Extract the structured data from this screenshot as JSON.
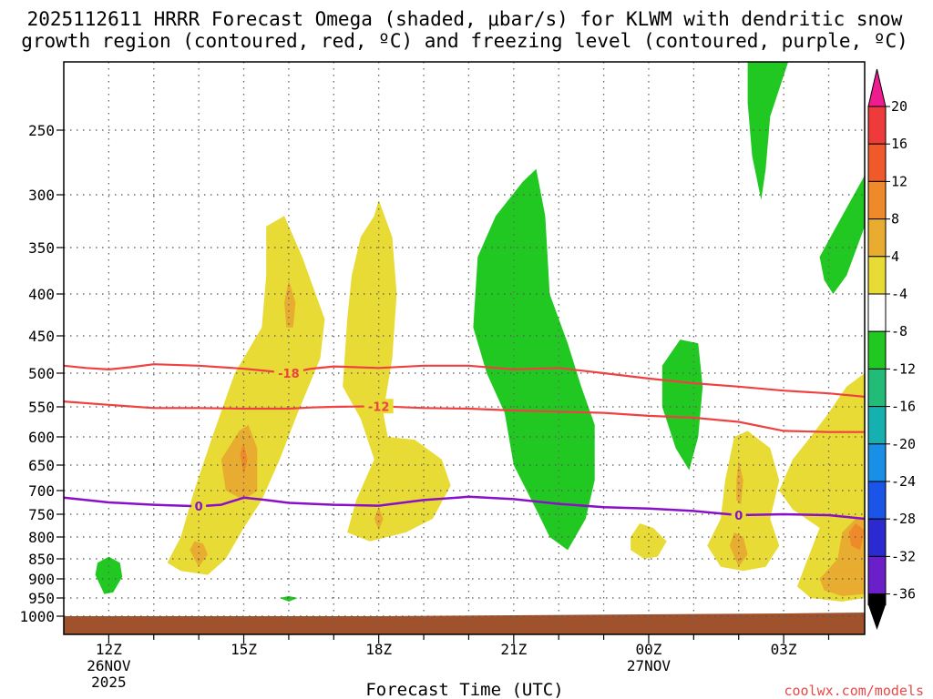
{
  "chart_data": {
    "type": "contour",
    "title_line1": "2025112611 HRRR Forecast Omega (shaded, μbar/s) for KLWM with dendritic snow",
    "title_line2": "growth region (contoured, red, ºC) and freezing level (contoured, purple, ºC)",
    "xlabel": "Forecast Time (UTC)",
    "credit": "coolwx.com/models",
    "x_range_hours": [
      11.0,
      28.8
    ],
    "y_axis": {
      "label_values": [
        250,
        300,
        350,
        400,
        450,
        500,
        550,
        600,
        650,
        700,
        750,
        800,
        850,
        900,
        950,
        1000
      ],
      "labels": [
        "250",
        "300",
        "350",
        "400",
        "450",
        "500",
        "550",
        "600",
        "650",
        "700",
        "750",
        "800",
        "850",
        "900",
        "950",
        "1000"
      ],
      "range_hpa": [
        200,
        1020
      ],
      "scale": "log-pressure"
    },
    "x_ticks": [
      {
        "hour": 12,
        "label": "12Z",
        "date": "26NOV",
        "year": "2025"
      },
      {
        "hour": 15,
        "label": "15Z",
        "date": "",
        "year": ""
      },
      {
        "hour": 18,
        "label": "18Z",
        "date": "",
        "year": ""
      },
      {
        "hour": 21,
        "label": "21Z",
        "date": "",
        "year": ""
      },
      {
        "hour": 24,
        "label": "00Z",
        "date": "27NOV",
        "year": ""
      },
      {
        "hour": 27,
        "label": "03Z",
        "date": "",
        "year": ""
      }
    ],
    "colorbar": {
      "labels": [
        "20",
        "16",
        "12",
        "8",
        "4",
        "-4",
        "-8",
        "-12",
        "-16",
        "-20",
        "-24",
        "-28",
        "-32",
        "-36"
      ],
      "colors": [
        "#ee1c8e",
        "#ee3a3a",
        "#f05a2a",
        "#ef8a2a",
        "#e8ad30",
        "#e8db35",
        "#ffffff",
        "#21c821",
        "#22bb77",
        "#17b0b0",
        "#1a8fe6",
        "#1a55e8",
        "#2a2ad0",
        "#6a1fc8",
        "#9a1cc8",
        "#a9a9a9",
        "#000000"
      ]
    },
    "contours": {
      "dgz_top": {
        "label": "-18",
        "color": "#ef4141",
        "points": [
          [
            11.0,
            490
          ],
          [
            11.5,
            493
          ],
          [
            12.0,
            495
          ],
          [
            12.5,
            492
          ],
          [
            13.0,
            488
          ],
          [
            14.0,
            490
          ],
          [
            15.0,
            494
          ],
          [
            15.5,
            497
          ],
          [
            16.0,
            500
          ],
          [
            16.5,
            494
          ],
          [
            17.0,
            491
          ],
          [
            18.0,
            493
          ],
          [
            19.0,
            490
          ],
          [
            20.0,
            490
          ],
          [
            21.0,
            495
          ],
          [
            22.0,
            493
          ],
          [
            23.0,
            500
          ],
          [
            24.0,
            508
          ],
          [
            25.0,
            515
          ],
          [
            26.0,
            520
          ],
          [
            27.0,
            526
          ],
          [
            28.0,
            530
          ],
          [
            28.8,
            535
          ]
        ]
      },
      "dgz_bottom": {
        "label": "-12",
        "color": "#ef4141",
        "points": [
          [
            11.0,
            542
          ],
          [
            12.0,
            547
          ],
          [
            13.0,
            552
          ],
          [
            14.0,
            552
          ],
          [
            15.0,
            553
          ],
          [
            16.0,
            553
          ],
          [
            16.5,
            551
          ],
          [
            17.0,
            550
          ],
          [
            18.0,
            549
          ],
          [
            19.0,
            552
          ],
          [
            20.0,
            553
          ],
          [
            21.0,
            556
          ],
          [
            22.0,
            558
          ],
          [
            23.0,
            560
          ],
          [
            24.0,
            565
          ],
          [
            25.0,
            568
          ],
          [
            26.0,
            575
          ],
          [
            27.0,
            590
          ],
          [
            28.0,
            592
          ],
          [
            28.8,
            592
          ]
        ]
      },
      "freezing_level": {
        "label": "0",
        "color": "#8a10c8",
        "points": [
          [
            11.0,
            715
          ],
          [
            12.0,
            725
          ],
          [
            13.0,
            730
          ],
          [
            14.0,
            733
          ],
          [
            14.5,
            730
          ],
          [
            15.0,
            715
          ],
          [
            15.5,
            720
          ],
          [
            16.0,
            726
          ],
          [
            17.0,
            730
          ],
          [
            18.0,
            732
          ],
          [
            19.0,
            720
          ],
          [
            20.0,
            713
          ],
          [
            21.0,
            718
          ],
          [
            22.0,
            728
          ],
          [
            23.0,
            735
          ],
          [
            24.0,
            738
          ],
          [
            25.0,
            743
          ],
          [
            26.0,
            752
          ],
          [
            27.0,
            750
          ],
          [
            28.0,
            752
          ],
          [
            28.8,
            760
          ]
        ]
      }
    },
    "contour_labels": [
      {
        "text": "-18",
        "hour": 16.0,
        "hpa": 500,
        "color": "#ef4141"
      },
      {
        "text": "-12",
        "hour": 18.0,
        "hpa": 549,
        "color": "#ef4141"
      },
      {
        "text": "0",
        "hour": 14.0,
        "hpa": 733,
        "color": "#8a10c8"
      },
      {
        "text": "0",
        "hour": 26.0,
        "hpa": 752,
        "color": "#8a10c8"
      }
    ],
    "regions": [
      {
        "name": "green-12z-low",
        "color": "#21c821",
        "points": [
          [
            11.7,
            890
          ],
          [
            11.75,
            860
          ],
          [
            12.0,
            845
          ],
          [
            12.25,
            860
          ],
          [
            12.3,
            895
          ],
          [
            12.1,
            935
          ],
          [
            11.9,
            940
          ]
        ]
      },
      {
        "name": "green-16z-dot",
        "color": "#21c821",
        "points": [
          [
            15.8,
            950
          ],
          [
            16.0,
            945
          ],
          [
            16.2,
            950
          ],
          [
            16.0,
            960
          ]
        ]
      },
      {
        "name": "green-20z-main",
        "color": "#21c821",
        "points": [
          [
            20.1,
            440
          ],
          [
            20.2,
            360
          ],
          [
            20.6,
            320
          ],
          [
            21.2,
            290
          ],
          [
            21.5,
            280
          ],
          [
            21.7,
            320
          ],
          [
            21.8,
            400
          ],
          [
            22.2,
            460
          ],
          [
            22.5,
            520
          ],
          [
            22.8,
            580
          ],
          [
            22.8,
            680
          ],
          [
            22.6,
            760
          ],
          [
            22.2,
            830
          ],
          [
            21.8,
            800
          ],
          [
            21.5,
            740
          ],
          [
            21.0,
            650
          ],
          [
            20.8,
            560
          ],
          [
            20.4,
            500
          ]
        ]
      },
      {
        "name": "green-25z-mid",
        "color": "#21c821",
        "points": [
          [
            24.3,
            490
          ],
          [
            24.7,
            455
          ],
          [
            25.1,
            460
          ],
          [
            25.2,
            520
          ],
          [
            25.1,
            600
          ],
          [
            24.9,
            660
          ],
          [
            24.6,
            620
          ],
          [
            24.3,
            550
          ]
        ]
      },
      {
        "name": "green-26z-top",
        "color": "#21c821",
        "points": [
          [
            26.2,
            200
          ],
          [
            27.1,
            200
          ],
          [
            26.7,
            240
          ],
          [
            26.6,
            280
          ],
          [
            26.5,
            305
          ],
          [
            26.3,
            270
          ],
          [
            26.2,
            230
          ]
        ]
      },
      {
        "name": "green-28z-upper",
        "color": "#21c821",
        "points": [
          [
            27.8,
            360
          ],
          [
            28.3,
            320
          ],
          [
            28.8,
            285
          ],
          [
            28.8,
            330
          ],
          [
            28.4,
            380
          ],
          [
            28.1,
            400
          ],
          [
            27.9,
            385
          ]
        ]
      },
      {
        "name": "yellow-14z-col",
        "color": "#e8db35",
        "points": [
          [
            13.3,
            860
          ],
          [
            13.6,
            800
          ],
          [
            13.9,
            700
          ],
          [
            14.3,
            600
          ],
          [
            14.8,
            500
          ],
          [
            15.4,
            440
          ],
          [
            15.5,
            380
          ],
          [
            15.5,
            330
          ],
          [
            15.9,
            320
          ],
          [
            16.3,
            360
          ],
          [
            16.8,
            430
          ],
          [
            16.7,
            480
          ],
          [
            16.2,
            560
          ],
          [
            15.8,
            640
          ],
          [
            15.4,
            720
          ],
          [
            15.0,
            780
          ],
          [
            14.6,
            850
          ],
          [
            14.2,
            890
          ],
          [
            13.6,
            880
          ]
        ]
      },
      {
        "name": "yellow-18z-col",
        "color": "#e8db35",
        "points": [
          [
            17.2,
            520
          ],
          [
            17.3,
            430
          ],
          [
            17.4,
            380
          ],
          [
            17.6,
            340
          ],
          [
            17.9,
            320
          ],
          [
            18.0,
            305
          ],
          [
            18.3,
            340
          ],
          [
            18.4,
            400
          ],
          [
            18.3,
            480
          ],
          [
            18.1,
            560
          ],
          [
            18.2,
            600
          ],
          [
            18.8,
            605
          ],
          [
            19.4,
            640
          ],
          [
            19.6,
            690
          ],
          [
            19.2,
            760
          ],
          [
            18.6,
            790
          ],
          [
            17.8,
            810
          ],
          [
            17.3,
            790
          ],
          [
            17.5,
            720
          ],
          [
            17.9,
            640
          ],
          [
            17.6,
            570
          ]
        ]
      },
      {
        "name": "yellow-24z-small",
        "color": "#e8db35",
        "points": [
          [
            23.6,
            800
          ],
          [
            23.8,
            770
          ],
          [
            24.1,
            780
          ],
          [
            24.4,
            810
          ],
          [
            24.2,
            845
          ],
          [
            23.9,
            850
          ],
          [
            23.6,
            830
          ]
        ]
      },
      {
        "name": "yellow-26z-col",
        "color": "#e8db35",
        "points": [
          [
            25.3,
            820
          ],
          [
            25.6,
            760
          ],
          [
            25.7,
            680
          ],
          [
            25.9,
            600
          ],
          [
            26.2,
            590
          ],
          [
            26.7,
            620
          ],
          [
            26.9,
            680
          ],
          [
            26.7,
            760
          ],
          [
            26.9,
            820
          ],
          [
            26.6,
            870
          ],
          [
            26.1,
            880
          ],
          [
            25.6,
            870
          ]
        ]
      },
      {
        "name": "yellow-28z-right",
        "color": "#e8db35",
        "points": [
          [
            26.9,
            700
          ],
          [
            27.2,
            640
          ],
          [
            27.6,
            600
          ],
          [
            28.0,
            560
          ],
          [
            28.4,
            520
          ],
          [
            28.8,
            500
          ],
          [
            28.8,
            950
          ],
          [
            28.3,
            960
          ],
          [
            27.6,
            950
          ],
          [
            27.3,
            920
          ],
          [
            27.5,
            860
          ],
          [
            27.8,
            780
          ],
          [
            27.2,
            740
          ]
        ]
      },
      {
        "name": "orange-16z-top",
        "color": "#e8ad30",
        "points": [
          [
            15.9,
            410
          ],
          [
            16.0,
            385
          ],
          [
            16.15,
            410
          ],
          [
            16.1,
            440
          ],
          [
            15.95,
            440
          ]
        ]
      },
      {
        "name": "orange-15z-mid",
        "color": "#e8ad30",
        "points": [
          [
            14.5,
            640
          ],
          [
            14.9,
            590
          ],
          [
            15.1,
            580
          ],
          [
            15.3,
            620
          ],
          [
            15.3,
            700
          ],
          [
            15.0,
            720
          ],
          [
            14.6,
            700
          ]
        ]
      },
      {
        "name": "orange-14z-low",
        "color": "#e8ad30",
        "points": [
          [
            13.8,
            830
          ],
          [
            13.9,
            810
          ],
          [
            14.1,
            815
          ],
          [
            14.2,
            840
          ],
          [
            14.0,
            870
          ]
        ]
      },
      {
        "name": "orange-18z-low",
        "color": "#e8ad30",
        "points": [
          [
            17.9,
            760
          ],
          [
            18.0,
            735
          ],
          [
            18.1,
            760
          ],
          [
            18.0,
            785
          ]
        ]
      },
      {
        "name": "orange-26z-upper",
        "color": "#e8ad30",
        "points": [
          [
            25.95,
            680
          ],
          [
            26.0,
            640
          ],
          [
            26.1,
            680
          ],
          [
            26.05,
            730
          ],
          [
            25.95,
            720
          ]
        ]
      },
      {
        "name": "orange-26z-lower",
        "color": "#e8ad30",
        "points": [
          [
            25.8,
            820
          ],
          [
            25.9,
            790
          ],
          [
            26.1,
            800
          ],
          [
            26.2,
            840
          ],
          [
            26.0,
            870
          ]
        ]
      },
      {
        "name": "orange-28z-right",
        "color": "#e8ad30",
        "points": [
          [
            27.8,
            900
          ],
          [
            28.2,
            850
          ],
          [
            28.3,
            790
          ],
          [
            28.6,
            760
          ],
          [
            28.8,
            760
          ],
          [
            28.8,
            940
          ],
          [
            28.3,
            945
          ],
          [
            27.9,
            930
          ]
        ]
      },
      {
        "name": "redorange-15z",
        "color": "#ef8a2a",
        "points": [
          [
            14.92,
            630
          ],
          [
            15.0,
            610
          ],
          [
            15.08,
            640
          ],
          [
            15.0,
            670
          ]
        ]
      },
      {
        "name": "redorange-28z",
        "color": "#ef8a2a",
        "points": [
          [
            28.45,
            790
          ],
          [
            28.6,
            770
          ],
          [
            28.8,
            785
          ],
          [
            28.7,
            830
          ],
          [
            28.5,
            820
          ]
        ]
      }
    ]
  }
}
